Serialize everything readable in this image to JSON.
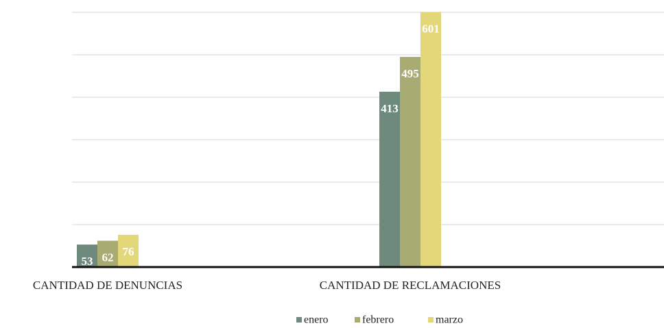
{
  "chart_data": {
    "type": "bar",
    "categories": [
      "CANTIDAD DE DENUNCIAS",
      "CANTIDAD DE RECLAMACIONES"
    ],
    "series": [
      {
        "name": "enero",
        "color": "#6e8a7c",
        "values": [
          53,
          413
        ]
      },
      {
        "name": "febrero",
        "color": "#a8ab72",
        "values": [
          62,
          495
        ]
      },
      {
        "name": "marzo",
        "color": "#e3d77a",
        "values": [
          76,
          601
        ]
      }
    ],
    "ylim": [
      0,
      600
    ],
    "yticks": [
      0,
      100,
      200,
      300,
      400,
      500,
      600
    ],
    "grid": true,
    "legend": "bottom"
  }
}
